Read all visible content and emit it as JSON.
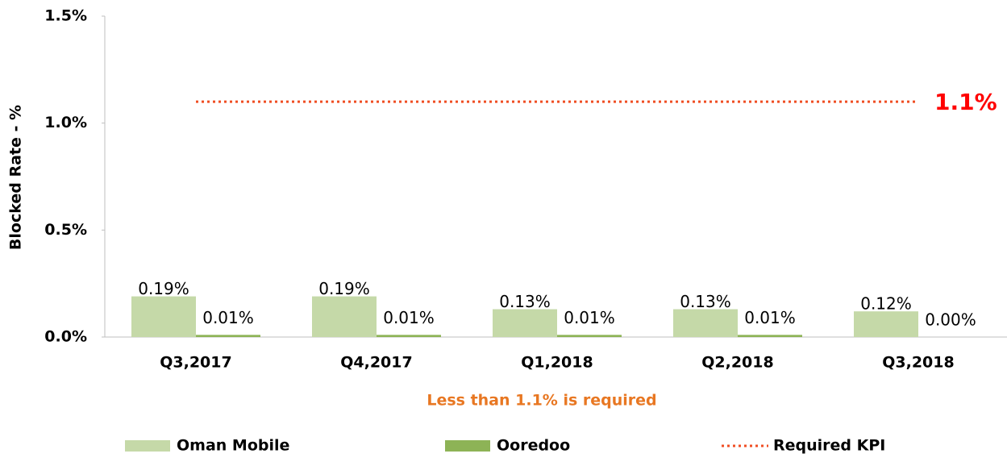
{
  "chart_data": {
    "type": "bar",
    "y_label": "Blocked Rate - %",
    "annotation": "Less than 1.1% is required",
    "categories": [
      "Q3,2017",
      "Q4,2017",
      "Q1,2018",
      "Q2,2018",
      "Q3,2018"
    ],
    "ylim": [
      0,
      1.5
    ],
    "yticks": [
      {
        "value": 0,
        "label": "0.0%"
      },
      {
        "value": 0.5,
        "label": "0.5%"
      },
      {
        "value": 1.0,
        "label": "1.0%"
      },
      {
        "value": 1.5,
        "label": "1.5%"
      }
    ],
    "series": [
      {
        "name": "Oman Mobile",
        "type": "bar",
        "color": "#c5d9a8",
        "values": [
          0.19,
          0.19,
          0.13,
          0.13,
          0.12
        ],
        "value_labels": [
          "0.19%",
          "0.19%",
          "0.13%",
          "0.13%",
          "0.12%"
        ]
      },
      {
        "name": "Ooredoo",
        "type": "bar",
        "color": "#8db356",
        "values": [
          0.01,
          0.01,
          0.01,
          0.01,
          0.0
        ],
        "value_labels": [
          "0.01%",
          "0.01%",
          "0.01%",
          "0.01%",
          "0.00%"
        ]
      },
      {
        "name": "Required KPI",
        "type": "line",
        "color": "#f04e23",
        "values": [
          1.1,
          1.1,
          1.1,
          1.1,
          1.1
        ],
        "value_labels": [
          null,
          null,
          null,
          null,
          "1.1%"
        ]
      }
    ],
    "legend": "bottom"
  }
}
